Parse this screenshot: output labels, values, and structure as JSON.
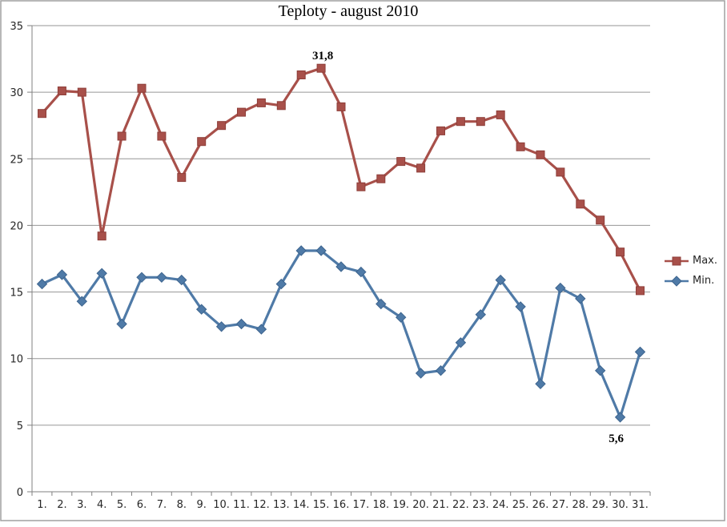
{
  "window": {
    "background": "#ffffff",
    "border_color": "#a0a0a0"
  },
  "chart_data": {
    "type": "line",
    "title": "Teploty - august 2010",
    "xlabel": "",
    "ylabel": "",
    "ylim": [
      0,
      35
    ],
    "grid": true,
    "legend_position": "right",
    "y_tick_labels": [
      "0",
      "5",
      "10",
      "15",
      "20",
      "25",
      "30",
      "35"
    ],
    "x_tick_labels": [
      "1.",
      "2.",
      "3.",
      "4.",
      "5.",
      "6.",
      "7.",
      "8.",
      "9.",
      "10.",
      "11.",
      "12.",
      "13.",
      "14.",
      "15.",
      "16.",
      "17.",
      "18.",
      "19.",
      "20.",
      "21.",
      "22.",
      "23.",
      "24.",
      "25.",
      "26.",
      "27.",
      "28.",
      "29.",
      "30.",
      "31."
    ],
    "series": [
      {
        "name": "Max.",
        "marker": "square",
        "color": "#a8504a",
        "marker_edge": "#8e3e39",
        "values": [
          28.4,
          30.1,
          30.0,
          19.2,
          26.7,
          30.3,
          26.7,
          23.6,
          26.3,
          27.5,
          28.5,
          29.2,
          29.0,
          31.3,
          31.8,
          28.9,
          22.9,
          23.5,
          24.8,
          24.3,
          27.1,
          27.8,
          27.8,
          28.3,
          25.9,
          25.3,
          24.0,
          21.6,
          20.4,
          18.0,
          15.1
        ]
      },
      {
        "name": "Min.",
        "marker": "diamond",
        "color": "#4f7aa7",
        "marker_edge": "#3d648e",
        "values": [
          15.6,
          16.3,
          14.3,
          16.4,
          12.6,
          16.1,
          16.1,
          15.9,
          13.7,
          12.4,
          12.6,
          12.2,
          15.6,
          18.1,
          18.1,
          16.9,
          16.5,
          14.1,
          13.1,
          8.9,
          9.1,
          11.2,
          13.3,
          15.9,
          13.9,
          8.1,
          15.3,
          14.5,
          9.1,
          5.6,
          10.5
        ]
      }
    ],
    "annotations": [
      {
        "series": "Max.",
        "day": 15,
        "text": "31,8",
        "position": "above"
      },
      {
        "series": "Min.",
        "day": 30,
        "text": "5,6",
        "position": "below"
      }
    ],
    "colors": {
      "gridline": "#969696",
      "axis": "#808080",
      "text": "#262626"
    }
  }
}
